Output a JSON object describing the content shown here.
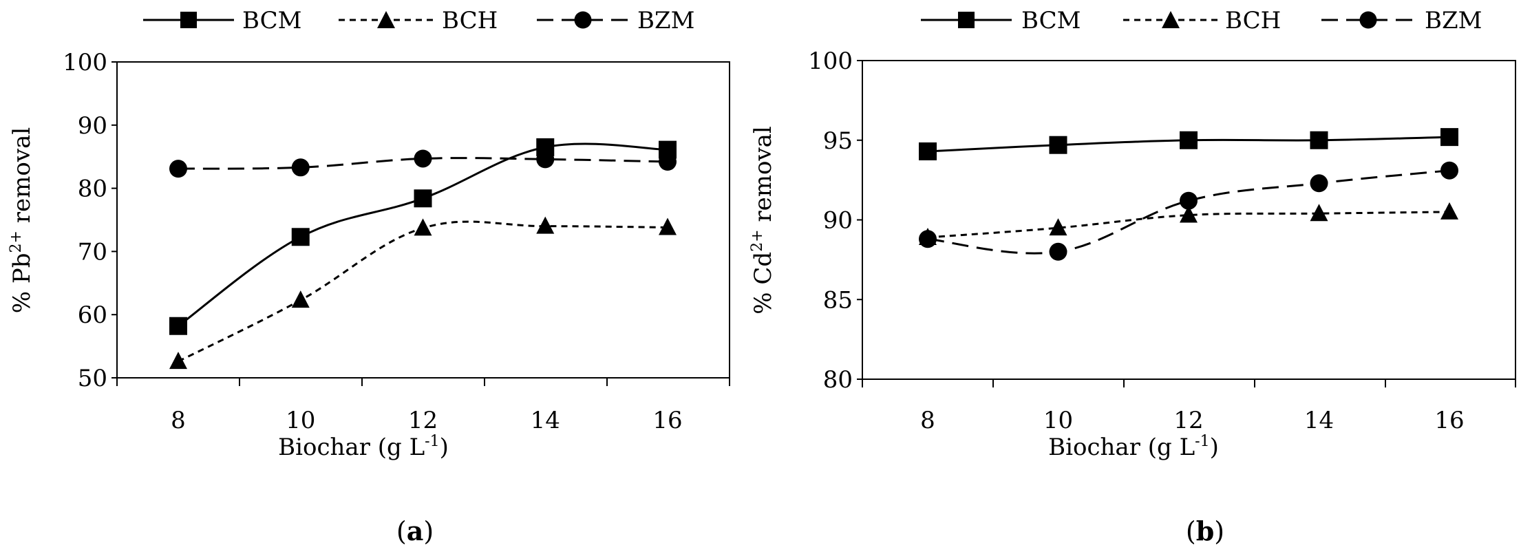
{
  "chart_data": [
    {
      "type": "line",
      "panel_label": {
        "open": "(",
        "letter": "a",
        "close": ")"
      },
      "title": "",
      "xlabel": {
        "main": "Biochar (g L",
        "sup": "-1",
        "end": ")"
      },
      "ylabel": {
        "pre": "% Pb",
        "sup": "2+",
        "post": " removal"
      },
      "x": [
        8,
        10,
        12,
        14,
        16
      ],
      "xticks": [
        "8",
        "10",
        "12",
        "14",
        "16"
      ],
      "ylim": [
        50,
        100
      ],
      "yticks": [
        50,
        60,
        70,
        80,
        90,
        100
      ],
      "ytick_labels": [
        "50",
        "60",
        "70",
        "80",
        "90",
        "100"
      ],
      "legend_position": "top",
      "series": [
        {
          "name": "BCM",
          "marker": "square",
          "dash": "solid",
          "values": [
            58.2,
            72.3,
            78.4,
            86.5,
            86.1
          ]
        },
        {
          "name": "BCH",
          "marker": "triangle",
          "dash": "short-dash",
          "values": [
            52.6,
            62.3,
            73.7,
            74.0,
            73.8
          ]
        },
        {
          "name": "BZM",
          "marker": "circle",
          "dash": "long-dash",
          "values": [
            83.1,
            83.3,
            84.7,
            84.6,
            84.2
          ]
        }
      ]
    },
    {
      "type": "line",
      "panel_label": {
        "open": "(",
        "letter": "b",
        "close": ")"
      },
      "title": "",
      "xlabel": {
        "main": "Biochar (g L",
        "sup": "-1",
        "end": ")"
      },
      "ylabel": {
        "pre": "% Cd",
        "sup": "2+",
        "post": " removal"
      },
      "x": [
        8,
        10,
        12,
        14,
        16
      ],
      "xticks": [
        "8",
        "10",
        "12",
        "14",
        "16"
      ],
      "ylim": [
        80,
        100
      ],
      "yticks": [
        80,
        85,
        90,
        95,
        100
      ],
      "ytick_labels": [
        "80",
        "85",
        "90",
        "95",
        "100"
      ],
      "legend_position": "top",
      "series": [
        {
          "name": "BCM",
          "marker": "square",
          "dash": "solid",
          "values": [
            94.3,
            94.7,
            95.0,
            95.0,
            95.2
          ]
        },
        {
          "name": "BCH",
          "marker": "triangle",
          "dash": "short-dash",
          "values": [
            88.9,
            89.5,
            90.3,
            90.4,
            90.5
          ]
        },
        {
          "name": "BZM",
          "marker": "circle",
          "dash": "long-dash",
          "values": [
            88.8,
            88.0,
            91.2,
            92.3,
            93.1
          ]
        }
      ]
    }
  ]
}
